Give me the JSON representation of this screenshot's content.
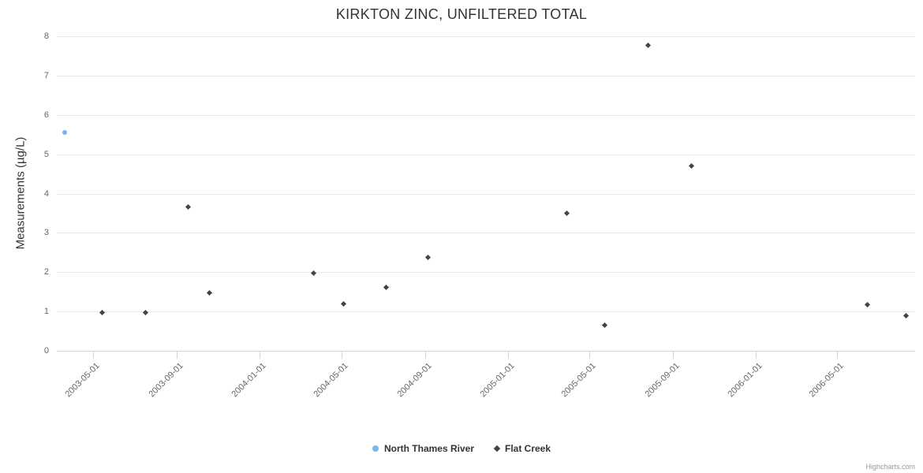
{
  "title": "KIRKTON ZINC, UNFILTERED TOTAL",
  "credit": "Highcharts.com",
  "chart_data": {
    "type": "scatter",
    "title": "KIRKTON ZINC, UNFILTERED TOTAL",
    "xlabel": "",
    "ylabel": "Measurements (µg/L)",
    "ylim": [
      0,
      8
    ],
    "yticks": [
      0,
      1,
      2,
      3,
      4,
      5,
      6,
      7,
      8
    ],
    "xlim": [
      "2003-03-08",
      "2006-08-24"
    ],
    "xticks": [
      "2003-05-01",
      "2003-09-01",
      "2004-01-01",
      "2004-05-01",
      "2004-09-01",
      "2005-01-01",
      "2005-05-01",
      "2005-09-01",
      "2006-01-01",
      "2006-05-01"
    ],
    "grid": true,
    "legend_position": "bottom-center",
    "colors": {
      "grid": "#e6e6e6",
      "axis": "#ccd6eb",
      "tick_label": "#666666"
    },
    "series": [
      {
        "name": "North Thames River",
        "color": "#7cb5ec",
        "marker": "circle",
        "points": [
          {
            "x": "2003-03-20",
            "y": 5.55
          }
        ]
      },
      {
        "name": "Flat Creek",
        "color": "#434348",
        "marker": "diamond",
        "points": [
          {
            "x": "2003-05-14",
            "y": 0.97
          },
          {
            "x": "2003-07-17",
            "y": 0.97
          },
          {
            "x": "2003-09-18",
            "y": 3.65
          },
          {
            "x": "2003-10-19",
            "y": 1.48
          },
          {
            "x": "2004-03-21",
            "y": 1.97
          },
          {
            "x": "2004-05-04",
            "y": 1.2
          },
          {
            "x": "2004-07-05",
            "y": 1.62
          },
          {
            "x": "2004-09-05",
            "y": 2.37
          },
          {
            "x": "2005-03-29",
            "y": 3.5
          },
          {
            "x": "2005-05-24",
            "y": 0.65
          },
          {
            "x": "2005-07-27",
            "y": 7.76
          },
          {
            "x": "2005-09-28",
            "y": 4.7
          },
          {
            "x": "2006-06-15",
            "y": 1.17
          },
          {
            "x": "2006-08-11",
            "y": 0.9
          }
        ]
      }
    ]
  }
}
